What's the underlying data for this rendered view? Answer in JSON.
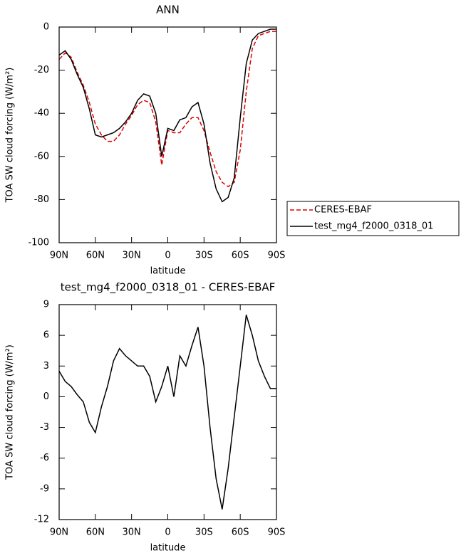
{
  "chart_data": [
    {
      "type": "line",
      "title": "ANN",
      "x_label": "latitude",
      "y_label": "TOA SW cloud forcing (W/m²)",
      "x": [
        90,
        85,
        80,
        75,
        70,
        65,
        60,
        55,
        50,
        45,
        40,
        35,
        30,
        25,
        20,
        15,
        10,
        5,
        0,
        -5,
        -10,
        -15,
        -20,
        -25,
        -30,
        -35,
        -40,
        -45,
        -50,
        -55,
        -60,
        -65,
        -70,
        -75,
        -80,
        -85,
        -90
      ],
      "series": [
        {
          "name": "CERES-EBAF",
          "color": "#e00000",
          "dash": true,
          "values": [
            -15,
            -12,
            -14,
            -21,
            -27,
            -35,
            -45,
            -50,
            -53,
            -53,
            -50,
            -45,
            -41,
            -36,
            -34,
            -35,
            -44,
            -64,
            -48,
            -49,
            -49,
            -45,
            -42,
            -42,
            -48,
            -58,
            -67,
            -72,
            -74,
            -72,
            -57,
            -30,
            -10,
            -4,
            -3,
            -2,
            -2
          ]
        },
        {
          "name": "test_mg4_f2000_0318_01",
          "color": "#000000",
          "dash": false,
          "values": [
            -13,
            -11,
            -15,
            -22,
            -28,
            -38,
            -50,
            -51,
            -50,
            -49,
            -47,
            -44,
            -40,
            -34,
            -31,
            -32,
            -40,
            -60,
            -47,
            -48,
            -43,
            -42,
            -37,
            -35,
            -45,
            -63,
            -75,
            -81,
            -79,
            -70,
            -42,
            -17,
            -6,
            -3,
            -2,
            -1,
            -1
          ]
        }
      ],
      "xlim": [
        90,
        -90
      ],
      "xticks": [
        {
          "value": 90,
          "label": "90N"
        },
        {
          "value": 60,
          "label": "60N"
        },
        {
          "value": 30,
          "label": "30N"
        },
        0,
        {
          "value": -30,
          "label": "30S"
        },
        {
          "value": -60,
          "label": "60S"
        },
        {
          "value": -90,
          "label": "90S"
        }
      ],
      "ylim": [
        -100,
        0
      ],
      "yticks": [
        0,
        -20,
        -40,
        -60,
        -80,
        -100
      ],
      "legend": "right"
    },
    {
      "type": "line",
      "title": "test_mg4_f2000_0318_01 - CERES-EBAF",
      "x_label": "latitude",
      "y_label": "TOA SW cloud forcing (W/m²)",
      "x": [
        90,
        85,
        80,
        75,
        70,
        65,
        60,
        55,
        50,
        45,
        40,
        35,
        30,
        25,
        20,
        15,
        10,
        5,
        0,
        -5,
        -10,
        -15,
        -20,
        -25,
        -30,
        -35,
        -40,
        -45,
        -50,
        -55,
        -60,
        -65,
        -70,
        -75,
        -80,
        -85,
        -90
      ],
      "series": [
        {
          "color": "#000000",
          "dash": false,
          "values": [
            2.5,
            1.5,
            1.0,
            0.2,
            -0.5,
            -2.5,
            -3.5,
            -1,
            1,
            3.5,
            4.7,
            4,
            3.5,
            3,
            3,
            2,
            -0.5,
            1,
            3,
            0,
            4,
            3,
            5,
            6.8,
            3,
            -3,
            -8,
            -11,
            -7,
            -2,
            3,
            8,
            6,
            3.5,
            2,
            0.8,
            0.8
          ]
        }
      ],
      "xlim": [
        90,
        -90
      ],
      "xticks": [
        {
          "value": 90,
          "label": "90N"
        },
        {
          "value": 60,
          "label": "60N"
        },
        {
          "value": 30,
          "label": "30N"
        },
        0,
        {
          "value": -30,
          "label": "30S"
        },
        {
          "value": -60,
          "label": "60S"
        },
        {
          "value": -90,
          "label": "90S"
        }
      ],
      "ylim": [
        -12,
        9
      ],
      "yticks": [
        9,
        6,
        3,
        0,
        -3,
        -6,
        -9,
        -12
      ]
    }
  ]
}
